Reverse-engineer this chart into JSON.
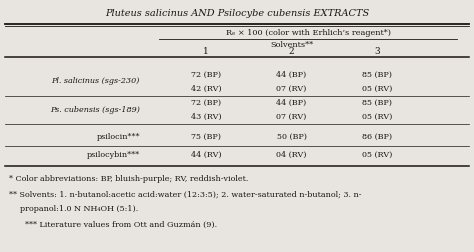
{
  "title_part1": "Pluteus salicinus",
  "title_and": " AND ",
  "title_part2": "Psilocybe cubensis",
  "title_end": " EXTRACTS",
  "header_rf": "Rₑ × 100 (color with Erhlich’s reagent*)",
  "header_solvents": "Solvents**",
  "col_headers": [
    "1",
    "2",
    "3"
  ],
  "row_labels": [
    "Pl. salicinus (sgs-230)",
    "Ps. cubensis (sgs-189)",
    "psilocin***",
    "psilocybin***"
  ],
  "row_labels_italic": [
    true,
    true,
    false,
    false
  ],
  "cell_data": [
    [
      "72 (BP)\n42 (RV)",
      "44 (BP)\n07 (RV)",
      "85 (BP)\n05 (RV)"
    ],
    [
      "72 (BP)\n43 (RV)",
      "44 (BP)\n07 (RV)",
      "85 (BP)\n05 (RV)"
    ],
    [
      "75 (BP)",
      "50 (BP)",
      "86 (BP)"
    ],
    [
      "44 (RV)",
      "04 (RV)",
      "05 (RV)"
    ]
  ],
  "footnote1": "* Color abbreviations: BP, bluish-purple; RV, reddish-violet.",
  "footnote2a": "** Solvents: 1. n-butanol:acetic acid:water (12:3:5); 2. water-saturated n-butanol; 3. n-",
  "footnote2b": "propanol:1.0 N NH₄OH (5:1).",
  "footnote3": "*** Literature values from Ott and Guzmán (9).",
  "bg_color": "#e8e5e0",
  "text_color": "#1a1510",
  "line_color": "#1a1510",
  "fs": 6.5,
  "fs_title": 7.0,
  "fs_footnote": 5.8
}
